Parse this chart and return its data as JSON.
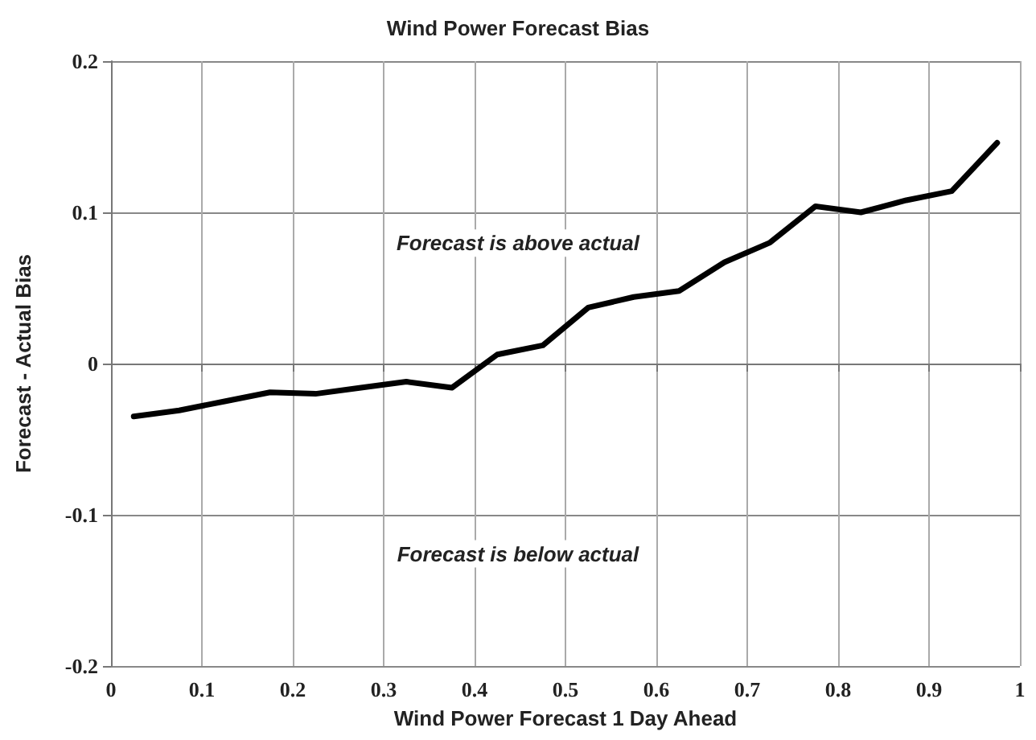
{
  "chart_data": {
    "type": "line",
    "title": "Wind Power Forecast Bias",
    "xlabel": "Wind Power Forecast 1 Day Ahead",
    "ylabel": "Forecast - Actual Bias",
    "x": [
      0.025,
      0.075,
      0.125,
      0.175,
      0.225,
      0.275,
      0.325,
      0.375,
      0.425,
      0.475,
      0.525,
      0.575,
      0.625,
      0.675,
      0.725,
      0.775,
      0.825,
      0.875,
      0.925,
      0.975
    ],
    "series": [
      {
        "color": "#000000",
        "values": [
          -0.035,
          -0.031,
          -0.025,
          -0.019,
          -0.02,
          -0.016,
          -0.012,
          -0.016,
          0.006,
          0.012,
          0.037,
          0.044,
          0.048,
          0.067,
          0.08,
          0.104,
          0.1,
          0.108,
          0.114,
          0.146
        ]
      }
    ],
    "xlim": [
      0,
      1
    ],
    "xticks": [
      0,
      0.1,
      0.2,
      0.3,
      0.4,
      0.5,
      0.6,
      0.7,
      0.8,
      0.9,
      1
    ],
    "ylim": [
      -0.2,
      0.2
    ],
    "yticks": [
      -0.2,
      -0.1,
      0,
      0.1,
      0.2
    ],
    "annotations": [
      "Forecast is above actual",
      "Forecast is below actual"
    ],
    "grid": true,
    "marker": "none",
    "line_style": "solid"
  }
}
